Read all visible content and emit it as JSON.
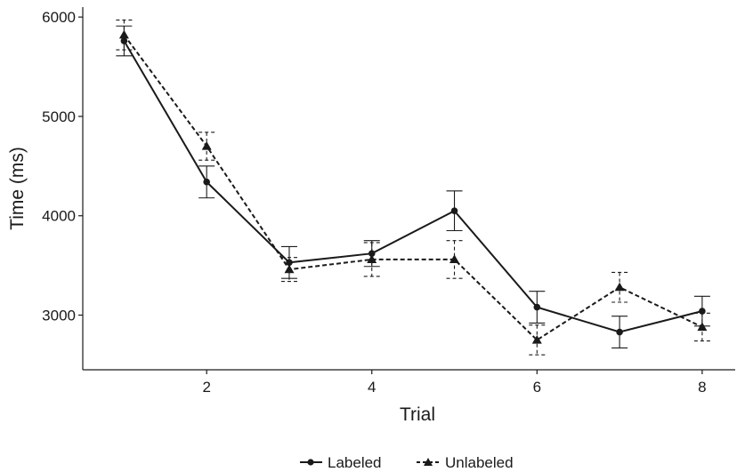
{
  "chart_data": {
    "type": "line",
    "title": "",
    "xlabel": "Trial",
    "ylabel": "Time (ms)",
    "xlim": [
      0.5,
      8.4
    ],
    "ylim": [
      2450,
      6100
    ],
    "x_ticks": [
      2,
      4,
      6,
      8
    ],
    "y_ticks": [
      3000,
      4000,
      5000,
      6000
    ],
    "grid": false,
    "legend_position": "bottom-center",
    "x": [
      1,
      2,
      3,
      4,
      5,
      6,
      7,
      8
    ],
    "series": [
      {
        "name": "Labeled",
        "marker": "circle",
        "line_style": "solid",
        "color": "#1a1a1a",
        "values": [
          5760,
          4340,
          3530,
          3620,
          4050,
          3080,
          2830,
          3040
        ],
        "error": [
          150,
          160,
          160,
          130,
          200,
          160,
          160,
          150
        ]
      },
      {
        "name": "Unlabeled",
        "marker": "triangle",
        "line_style": "dashed",
        "color": "#1a1a1a",
        "values": [
          5820,
          4700,
          3460,
          3560,
          3560,
          2750,
          3280,
          2880
        ],
        "error": [
          150,
          140,
          120,
          170,
          190,
          150,
          150,
          140
        ]
      }
    ]
  }
}
